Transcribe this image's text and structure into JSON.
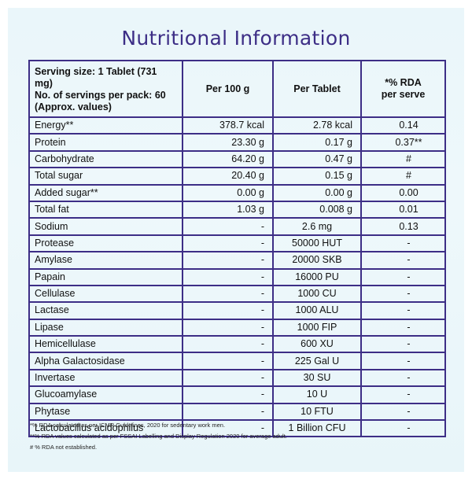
{
  "title": "Nutritional Information",
  "header": {
    "serving_line1": "Serving size: 1 Tablet (731 mg)",
    "serving_line2": "No. of servings per pack: 60",
    "serving_line3": "(Approx. values)",
    "per100": "Per 100 g",
    "pertablet": "Per Tablet",
    "rda_line1": "*% RDA",
    "rda_line2": "per serve"
  },
  "rows": [
    {
      "name": "Energy**",
      "per100": "378.7 kcal",
      "pertablet": "2.78 kcal",
      "rda": "0.14"
    },
    {
      "name": "Protein",
      "per100": "23.30 g",
      "pertablet": "0.17 g",
      "rda": "0.37**"
    },
    {
      "name": "Carbohydrate",
      "per100": "64.20 g",
      "pertablet": "0.47 g",
      "rda": "#"
    },
    {
      "name": "Total sugar",
      "per100": "20.40 g",
      "pertablet": "0.15 g",
      "rda": "#"
    },
    {
      "name": "Added sugar**",
      "per100": "0.00 g",
      "pertablet": "0.00 g",
      "rda": "0.00"
    },
    {
      "name": "Total fat",
      "per100": "1.03 g",
      "pertablet": "0.008 g",
      "rda": "0.01"
    },
    {
      "name": "Sodium",
      "per100": "-",
      "pertablet": "2.6 mg",
      "rda": "0.13"
    },
    {
      "name": "Protease",
      "per100": "-",
      "pertablet": "50000 HUT",
      "rda": "-"
    },
    {
      "name": "Amylase",
      "per100": "-",
      "pertablet": "20000 SKB",
      "rda": "-"
    },
    {
      "name": "Papain",
      "per100": "-",
      "pertablet": "16000 PU",
      "rda": "-"
    },
    {
      "name": "Cellulase",
      "per100": "-",
      "pertablet": "1000 CU",
      "rda": "-"
    },
    {
      "name": "Lactase",
      "per100": "-",
      "pertablet": "1000 ALU",
      "rda": "-"
    },
    {
      "name": "Lipase",
      "per100": "-",
      "pertablet": "1000 FIP",
      "rda": "-"
    },
    {
      "name": "Hemicellulase",
      "per100": "-",
      "pertablet": "600 XU",
      "rda": "-"
    },
    {
      "name": "Alpha Galactosidase",
      "per100": "-",
      "pertablet": "225 Gal U",
      "rda": "-"
    },
    {
      "name": "Invertase",
      "per100": "-",
      "pertablet": "30 SU",
      "rda": "-"
    },
    {
      "name": "Glucoamylase",
      "per100": "-",
      "pertablet": "10 U",
      "rda": "-"
    },
    {
      "name": "Phytase",
      "per100": "-",
      "pertablet": "10 FTU",
      "rda": "-"
    },
    {
      "name": "Lactobacillus acidophilus",
      "per100": "-",
      "pertablet": "1 Billion CFU",
      "rda": "-"
    }
  ],
  "footnotes": [
    "*% RDA calculated as per ICMR Guidelines, 2020 for sedentary work men.",
    "**% RDA values calculated as per FSSAI Labelling and Display Regulation 2020 for average adult.",
    "# % RDA not established."
  ],
  "colors": {
    "accent": "#3d2e86",
    "background": "#eaf6fa"
  }
}
